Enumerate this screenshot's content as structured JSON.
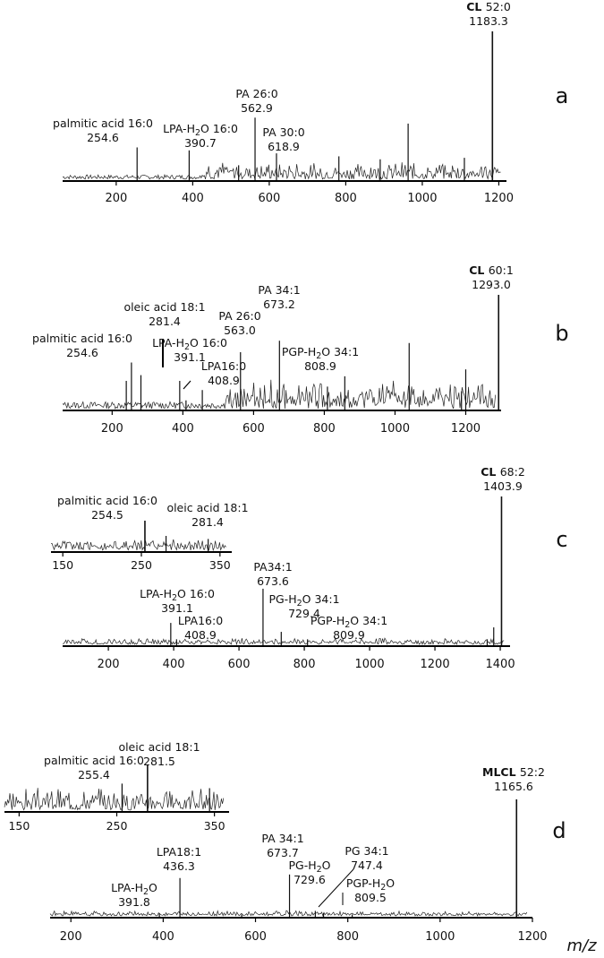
{
  "xaxis_label": "m/z",
  "chart_data": [
    {
      "panel": "a",
      "type": "line",
      "xlim": [
        60,
        1220
      ],
      "ticks": [
        200,
        400,
        600,
        800,
        1000,
        1200
      ],
      "peaks": [
        {
          "x": 1183.3,
          "h": 1.0
        },
        {
          "x": 254.6,
          "h": 0.22
        },
        {
          "x": 390.7,
          "h": 0.2
        },
        {
          "x": 562.9,
          "h": 0.42
        },
        {
          "x": 618.9,
          "h": 0.18
        },
        {
          "x": 963,
          "h": 0.38
        },
        {
          "x": 1110,
          "h": 0.15
        },
        {
          "x": 520,
          "h": 0.1
        },
        {
          "x": 782,
          "h": 0.16
        },
        {
          "x": 890,
          "h": 0.14
        }
      ],
      "labels": [
        {
          "lines": [
            "palmitic acid 16:0",
            "254.6"
          ]
        },
        {
          "lines": [
            "LPA-H2O 16:0",
            "390.7"
          ]
        },
        {
          "lines": [
            "PA 26:0",
            "562.9"
          ]
        },
        {
          "lines": [
            "PA 30:0",
            "618.9"
          ]
        },
        {
          "bold": "CL",
          "name": "52:0",
          "value": "1183.3"
        }
      ]
    },
    {
      "panel": "b",
      "type": "line",
      "xlim": [
        60,
        1300
      ],
      "ticks": [
        200,
        400,
        600,
        800,
        1000,
        1200
      ],
      "peaks": [
        {
          "x": 1293.0,
          "h": 1.0
        },
        {
          "x": 254.6,
          "h": 0.41
        },
        {
          "x": 281.4,
          "h": 0.3
        },
        {
          "x": 391.1,
          "h": 0.25
        },
        {
          "x": 408.9,
          "h": 0.08
        },
        {
          "x": 455,
          "h": 0.17
        },
        {
          "x": 563.0,
          "h": 0.5
        },
        {
          "x": 673.2,
          "h": 0.6
        },
        {
          "x": 808.9,
          "h": 0.2
        },
        {
          "x": 858,
          "h": 0.29
        },
        {
          "x": 1040,
          "h": 0.58
        },
        {
          "x": 1200,
          "h": 0.35
        },
        {
          "x": 1188,
          "h": 0.16
        },
        {
          "x": 240,
          "h": 0.25
        }
      ],
      "labels": [
        {
          "lines": [
            "palmitic acid 16:0",
            "254.6"
          ]
        },
        {
          "lines": [
            "oleic acid 18:1",
            "281.4"
          ]
        },
        {
          "lines": [
            "LPA-H2O 16:0",
            "391.1"
          ]
        },
        {
          "lines": [
            "LPA16:0",
            "408.9"
          ]
        },
        {
          "lines": [
            "PA 26:0",
            "563.0"
          ]
        },
        {
          "lines": [
            "PA 34:1",
            "673.2"
          ]
        },
        {
          "lines": [
            "PGP-H2O 34:1",
            "808.9"
          ]
        },
        {
          "bold": "CL",
          "name": "60:1",
          "value": "1293.0"
        }
      ]
    },
    {
      "panel": "c",
      "type": "line",
      "xlim": [
        60,
        1430
      ],
      "ticks": [
        200,
        400,
        600,
        800,
        1000,
        1200,
        1400
      ],
      "peaks": [
        {
          "x": 1403.9,
          "h": 1.0
        },
        {
          "x": 391.1,
          "h": 0.15
        },
        {
          "x": 408.9,
          "h": 0.04
        },
        {
          "x": 673.6,
          "h": 0.38
        },
        {
          "x": 729.4,
          "h": 0.09
        },
        {
          "x": 809.9,
          "h": 0.04
        },
        {
          "x": 1380,
          "h": 0.12
        },
        {
          "x": 1360,
          "h": 0.04
        }
      ],
      "labels": [
        {
          "lines": [
            "LPA-H2O 16:0",
            "391.1"
          ]
        },
        {
          "lines": [
            "LPA16:0",
            "408.9"
          ]
        },
        {
          "lines": [
            "PA34:1",
            "673.6"
          ]
        },
        {
          "lines": [
            "PG-H2O 34:1",
            "729.4"
          ]
        },
        {
          "lines": [
            "PGP-H2O 34:1",
            "809.9"
          ]
        },
        {
          "bold": "CL",
          "name": "68:2",
          "value": "1403.9"
        }
      ],
      "inset": {
        "xlim": [
          135,
          365
        ],
        "ticks": [
          150,
          250,
          350
        ],
        "peaks": [
          {
            "x": 254.5,
            "h": 1.0
          },
          {
            "x": 281.4,
            "h": 0.5
          },
          {
            "x": 335,
            "h": 0.4
          }
        ],
        "labels": [
          {
            "lines": [
              "palmitic acid 16:0",
              "254.5"
            ]
          },
          {
            "lines": [
              "oleic acid 18:1",
              "281.4"
            ]
          }
        ]
      }
    },
    {
      "panel": "d",
      "type": "line",
      "xlim": [
        155,
        1200
      ],
      "ticks": [
        200,
        400,
        600,
        800,
        1000,
        1200
      ],
      "peaks": [
        {
          "x": 1165.6,
          "h": 1.0
        },
        {
          "x": 436.3,
          "h": 0.33
        },
        {
          "x": 391.8,
          "h": 0.03
        },
        {
          "x": 673.7,
          "h": 0.36
        },
        {
          "x": 729.6,
          "h": 0.05
        },
        {
          "x": 747.4,
          "h": 0.03
        },
        {
          "x": 809.5,
          "h": 0.02
        },
        {
          "x": 570,
          "h": 0.02
        }
      ],
      "labels": [
        {
          "lines": [
            "LPA-H2O",
            "391.8"
          ]
        },
        {
          "lines": [
            "LPA18:1",
            "436.3"
          ]
        },
        {
          "lines": [
            "PA 34:1",
            "673.7"
          ]
        },
        {
          "lines": [
            "PG-H2O",
            "729.6"
          ]
        },
        {
          "lines": [
            "PG 34:1",
            "747.4"
          ]
        },
        {
          "lines": [
            "PGP-H2O",
            "809.5"
          ]
        },
        {
          "bold": "MLCL",
          "name": "52:2",
          "value": "1165.6"
        }
      ],
      "inset": {
        "xlim": [
          135,
          365
        ],
        "ticks": [
          150,
          250,
          350
        ],
        "peaks": [
          {
            "x": 255.4,
            "h": 0.6
          },
          {
            "x": 281.5,
            "h": 1.0
          },
          {
            "x": 345,
            "h": 0.5
          }
        ],
        "labels": [
          {
            "lines": [
              "palmitic acid 16:0",
              "255.4"
            ]
          },
          {
            "lines": [
              "oleic acid 18:1",
              "281.5"
            ]
          }
        ]
      }
    }
  ]
}
